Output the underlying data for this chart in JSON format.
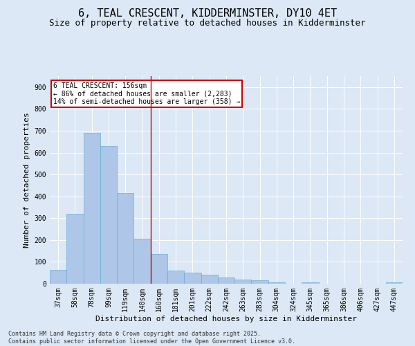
{
  "title": "6, TEAL CRESCENT, KIDDERMINSTER, DY10 4ET",
  "subtitle": "Size of property relative to detached houses in Kidderminster",
  "xlabel": "Distribution of detached houses by size in Kidderminster",
  "ylabel": "Number of detached properties",
  "categories": [
    "37sqm",
    "58sqm",
    "78sqm",
    "99sqm",
    "119sqm",
    "140sqm",
    "160sqm",
    "181sqm",
    "201sqm",
    "222sqm",
    "242sqm",
    "263sqm",
    "283sqm",
    "304sqm",
    "324sqm",
    "345sqm",
    "365sqm",
    "386sqm",
    "406sqm",
    "427sqm",
    "447sqm"
  ],
  "values": [
    62,
    320,
    690,
    630,
    415,
    205,
    135,
    60,
    50,
    42,
    30,
    20,
    15,
    5,
    0,
    5,
    0,
    0,
    0,
    0,
    5
  ],
  "bar_color": "#aec6e8",
  "bar_edge_color": "#6baed6",
  "marker_label": "6 TEAL CRESCENT: 156sqm",
  "annotation_line1": "← 86% of detached houses are smaller (2,283)",
  "annotation_line2": "14% of semi-detached houses are larger (358) →",
  "annotation_box_color": "#ffffff",
  "annotation_box_edge_color": "#cc0000",
  "vline_color": "#cc0000",
  "vline_x": 5.5,
  "ylim": [
    0,
    950
  ],
  "yticks": [
    0,
    100,
    200,
    300,
    400,
    500,
    600,
    700,
    800,
    900
  ],
  "background_color": "#dce8f5",
  "footer_line1": "Contains HM Land Registry data © Crown copyright and database right 2025.",
  "footer_line2": "Contains public sector information licensed under the Open Government Licence v3.0.",
  "title_fontsize": 11,
  "subtitle_fontsize": 9,
  "axis_fontsize": 8,
  "tick_fontsize": 7,
  "footer_fontsize": 6
}
